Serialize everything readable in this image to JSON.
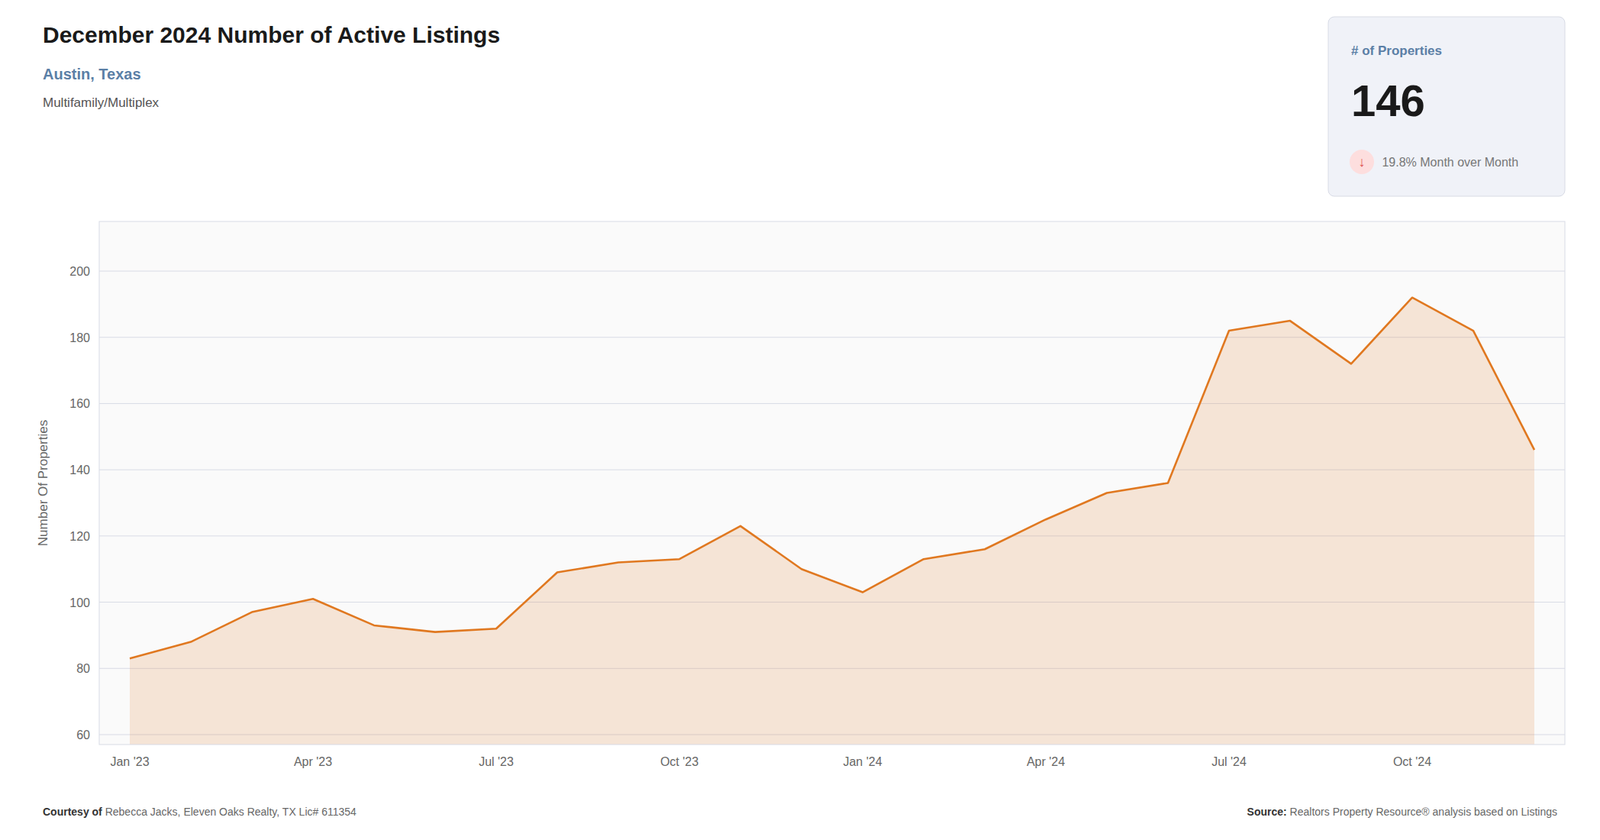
{
  "chart_data": {
    "type": "area",
    "title": "December 2024 Number of Active Listings",
    "subtitle": "Austin, Texas",
    "annotations": [
      "Multifamily/Multiplex",
      "# of Properties",
      "146",
      "↓",
      " 19.8% Month over Month",
      "Courtesy of",
      " Rebecca Jacks, Eleven Oaks Realty, TX Lic# 611354",
      "Source:",
      " Realtors Property Resource® analysis based on Listings"
    ],
    "ylabel": "Number Of Properties",
    "categories": [
      "Jan '23",
      null,
      null,
      "Apr '23",
      null,
      null,
      "Jul '23",
      null,
      null,
      "Oct '23",
      null,
      null,
      "Jan '24",
      null,
      null,
      "Apr '24",
      null,
      null,
      "Jul '24",
      null,
      null,
      "Oct '24",
      null,
      null
    ],
    "values": [
      83,
      88,
      97,
      101,
      93,
      91,
      92,
      109,
      112,
      113,
      123,
      110,
      103,
      113,
      116,
      125,
      133,
      136,
      182,
      185,
      172,
      192,
      182,
      146
    ],
    "color": "#E07820",
    "ylim": [
      57,
      215
    ],
    "yticks": [
      60,
      80,
      100,
      120,
      140,
      160,
      180,
      200
    ],
    "grid": true
  }
}
